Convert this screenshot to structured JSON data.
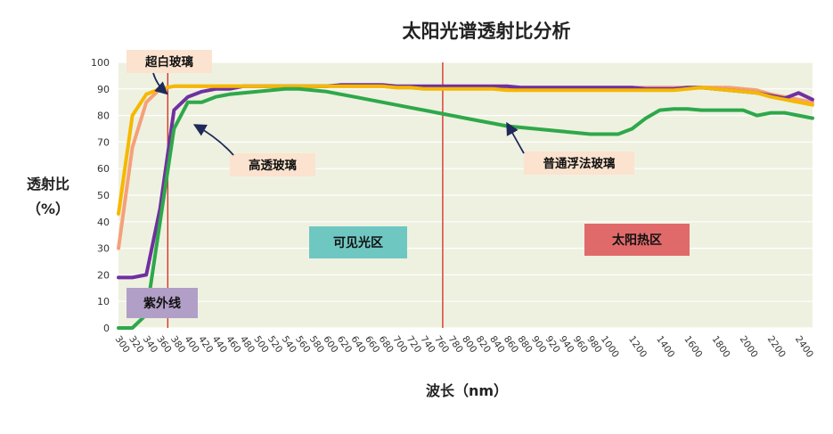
{
  "chart_data": {
    "type": "line",
    "title": "太阳光谱透射比分析",
    "xlabel": "波长（nm）",
    "ylabel_line1": "透射比",
    "ylabel_line2": "（%）",
    "ylim": [
      0,
      100
    ],
    "yticks": [
      "0",
      "10",
      "20",
      "30",
      "40",
      "50",
      "60",
      "70",
      "80",
      "90",
      "100"
    ],
    "x": [
      "300",
      "320",
      "340",
      "360",
      "380",
      "400",
      "420",
      "440",
      "460",
      "480",
      "500",
      "520",
      "540",
      "560",
      "580",
      "600",
      "620",
      "640",
      "660",
      "680",
      "700",
      "720",
      "740",
      "760",
      "780",
      "800",
      "820",
      "840",
      "860",
      "880",
      "900",
      "920",
      "940",
      "960",
      "980",
      "1000",
      "1100",
      "1200",
      "1300",
      "1400",
      "1500",
      "1600",
      "1700",
      "1800",
      "1900",
      "2000",
      "2100",
      "2200",
      "2300",
      "2400",
      "2500"
    ],
    "xticks": [
      "300",
      "320",
      "340",
      "360",
      "380",
      "400",
      "420",
      "440",
      "460",
      "480",
      "500",
      "520",
      "540",
      "560",
      "580",
      "600",
      "620",
      "640",
      "660",
      "680",
      "700",
      "720",
      "740",
      "760",
      "780",
      "800",
      "820",
      "840",
      "860",
      "880",
      "900",
      "920",
      "940",
      "960",
      "980",
      "1000",
      "1200",
      "1400",
      "1600",
      "1800",
      "2000",
      "2200",
      "2400"
    ],
    "series": [
      {
        "name": "超白玻璃",
        "color": "#f5a07a",
        "values": [
          30,
          68,
          85,
          90,
          91,
          91,
          91,
          91,
          91,
          91,
          91,
          91,
          91,
          91,
          91,
          91,
          91,
          91,
          91,
          91,
          90.5,
          90.5,
          90.5,
          90.5,
          90.5,
          90.5,
          90.5,
          90.5,
          90.5,
          90.5,
          90.5,
          90.5,
          90.5,
          90.5,
          90.5,
          90.5,
          90.5,
          90.5,
          90.5,
          90.5,
          90.5,
          90.5,
          90.5,
          90.5,
          90.5,
          90,
          89.5,
          88,
          87,
          86,
          85
        ]
      },
      {
        "name": "紫外线高透玻璃",
        "color": "#7030a0",
        "values": [
          19,
          19,
          20,
          45,
          82,
          87,
          89,
          90,
          90,
          91,
          91,
          91,
          91,
          91,
          91,
          91,
          91.5,
          91.5,
          91.5,
          91.5,
          91,
          91,
          91,
          91,
          91,
          91,
          91,
          91,
          91,
          90.5,
          90.5,
          90.5,
          90.5,
          90.5,
          90.5,
          90.5,
          90.5,
          90.5,
          90,
          90,
          90,
          90.5,
          90.5,
          90,
          89.5,
          89,
          88.5,
          87.5,
          86.5,
          88.5,
          86
        ]
      },
      {
        "name": "高透玻璃",
        "color": "#f5b800",
        "values": [
          43,
          80,
          88,
          90,
          91,
          91,
          91,
          91,
          91,
          91,
          91,
          91,
          91,
          91,
          91,
          91,
          91,
          91,
          91,
          91,
          90.5,
          90.5,
          90,
          90,
          90,
          90,
          90,
          90,
          89.5,
          89.5,
          89.5,
          89.5,
          89.5,
          89.5,
          89.5,
          89.5,
          89.5,
          89.5,
          89.5,
          89.5,
          89.5,
          90,
          90.5,
          90,
          89.5,
          89,
          88.5,
          87,
          86,
          85,
          84
        ]
      },
      {
        "name": "普通浮法玻璃",
        "color": "#2ea84a",
        "values": [
          0,
          0,
          5,
          40,
          75,
          85,
          85,
          87,
          88,
          88.5,
          89,
          89.5,
          90,
          90,
          89.5,
          89,
          88,
          87,
          86,
          85,
          84,
          83,
          82,
          81,
          80,
          79,
          78,
          77,
          76,
          75.5,
          75,
          74.5,
          74,
          73.5,
          73,
          73,
          73,
          75,
          79,
          82,
          82.5,
          82.5,
          82,
          82,
          82,
          82,
          80,
          81,
          81,
          80,
          79
        ]
      }
    ],
    "annotations": {
      "uv": "紫外线",
      "visible": "可见光区",
      "solar_heat": "太阳热区",
      "ultra_white": "超白玻璃",
      "high_trans": "高透玻璃",
      "ordinary": "普通浮法玻璃"
    },
    "colors": {
      "plot_bg": "#eef1e0",
      "divider": "#d9342b",
      "uv_box": "#b19fc7",
      "visible_box": "#6fc7c2",
      "heat_box": "#e06a6a",
      "label_box": "#fbe3cf",
      "arrow": "#1f2a5a"
    },
    "grid": "horizontal",
    "legend": "none"
  }
}
